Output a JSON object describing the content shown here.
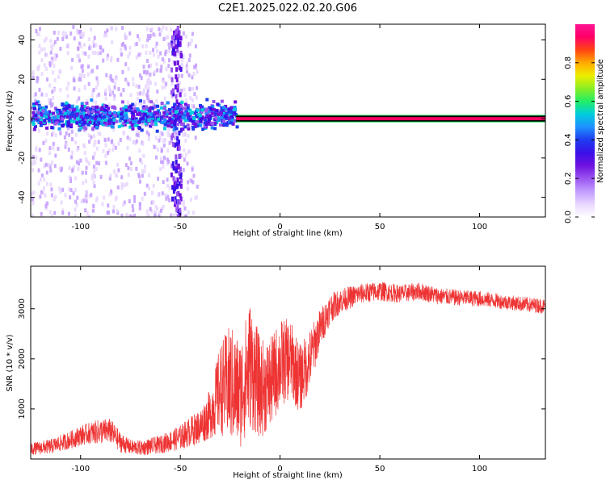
{
  "title": "C2E1.2025.022.02.20.G06",
  "colors": {
    "snr_line": "#ee3333",
    "colormap": [
      "#ffffff",
      "#e8d6ff",
      "#c39cff",
      "#9a55f0",
      "#7011e0",
      "#3a10e8",
      "#1f3cf0",
      "#1e90ff",
      "#00ccdd",
      "#22ee66",
      "#88ee22",
      "#eeee00",
      "#ffaa00",
      "#ff4411",
      "#ff0066",
      "#ff1493"
    ]
  },
  "chart_data": [
    {
      "type": "heatmap",
      "name": "spectrogram",
      "xlabel": "Height of straight line (km)",
      "ylabel": "Frequency (Hz)",
      "xlim": [
        -125,
        133
      ],
      "ylim": [
        -50,
        48
      ],
      "x_ticks": [
        -100,
        -50,
        0,
        50,
        100
      ],
      "y_ticks": [
        -40,
        -20,
        0,
        20,
        40
      ],
      "colorbar": {
        "label": "Normalized spectral amplitude",
        "range": [
          0,
          1
        ],
        "ticks": [
          0.0,
          0.2,
          0.4,
          0.6,
          0.8
        ]
      },
      "features": {
        "carrier_band": {
          "x_start": -22,
          "x_end": 133,
          "freq_center": 0,
          "freq_halfwidth": 1.5,
          "amplitude": 0.95
        },
        "scattered_band": {
          "x_start": -125,
          "x_end": -22,
          "freq_center": 2,
          "freq_halfwidth": 6,
          "amplitude": 0.35
        },
        "noise_region": {
          "x_start": -125,
          "x_end": -42,
          "amplitude": 0.12
        },
        "vertical_streak": {
          "x_start": -55,
          "x_end": -50,
          "amplitude": 0.3
        }
      }
    },
    {
      "type": "line",
      "name": "snr",
      "xlabel": "Height of straight line (km)",
      "ylabel": "SNR (10 * v/v)",
      "xlim": [
        -125,
        133
      ],
      "ylim": [
        0,
        3850
      ],
      "x_ticks": [
        -100,
        -50,
        0,
        50,
        100
      ],
      "y_ticks": [
        1000,
        2000,
        3000
      ],
      "series": [
        {
          "name": "SNR",
          "x": [
            -125,
            -115,
            -105,
            -100,
            -95,
            -90,
            -85,
            -80,
            -75,
            -70,
            -60,
            -50,
            -45,
            -40,
            -35,
            -30,
            -25,
            -20,
            -15,
            -10,
            -5,
            0,
            5,
            10,
            15,
            20,
            25,
            30,
            40,
            50,
            60,
            70,
            80,
            90,
            100,
            110,
            120,
            133
          ],
          "values": [
            200,
            250,
            380,
            470,
            520,
            550,
            560,
            330,
            240,
            220,
            290,
            430,
            550,
            650,
            900,
            1400,
            1500,
            1300,
            1900,
            1400,
            1500,
            1900,
            2000,
            1600,
            2000,
            2600,
            3000,
            3150,
            3300,
            3350,
            3300,
            3350,
            3250,
            3220,
            3200,
            3150,
            3100,
            3050
          ],
          "noise_amplitude": [
            120,
            150,
            180,
            200,
            220,
            250,
            250,
            200,
            150,
            150,
            180,
            250,
            300,
            350,
            500,
            900,
            1200,
            1100,
            1300,
            1000,
            900,
            900,
            800,
            700,
            600,
            400,
            300,
            250,
            200,
            200,
            180,
            180,
            170,
            160,
            160,
            150,
            150,
            150
          ]
        }
      ]
    }
  ]
}
